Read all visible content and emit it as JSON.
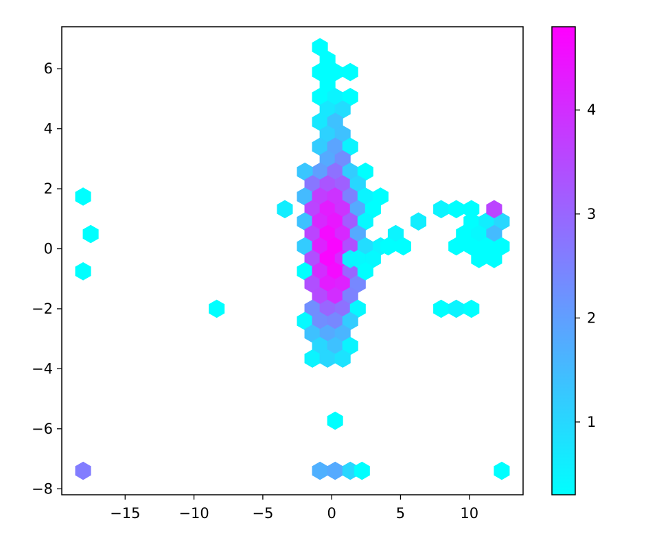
{
  "chart_data": {
    "type": "hexbin",
    "title": "",
    "xlabel": "",
    "ylabel": "",
    "xlim": [
      -19.6,
      13.9
    ],
    "ylim": [
      -8.2,
      7.4
    ],
    "x_ticks": [
      -15,
      -10,
      -5,
      0,
      5,
      10
    ],
    "x_tick_labels": [
      "−15",
      "−10",
      "−5",
      "0",
      "5",
      "10"
    ],
    "y_ticks": [
      -8,
      -6,
      -4,
      -2,
      0,
      2,
      4,
      6
    ],
    "y_tick_labels": [
      "−8",
      "−6",
      "−4",
      "−2",
      "0",
      "2",
      "4",
      "6"
    ],
    "grid": false,
    "colormap": "cool",
    "color_min": "#00ffff",
    "color_max": "#ff00ff",
    "colorbar": {
      "vmin": 0.3,
      "vmax": 4.8,
      "ticks": [
        1,
        2,
        3,
        4
      ],
      "tick_labels": [
        "1",
        "2",
        "3",
        "4"
      ]
    },
    "hex_x_spacing": 1.12,
    "hex_y_spacing": 0.415,
    "hexbins": [
      {
        "x": -0.85,
        "y": 6.72,
        "v": 0.3
      },
      {
        "x": -0.3,
        "y": 6.3,
        "v": 0.3
      },
      {
        "x": -0.85,
        "y": 5.89,
        "v": 0.3
      },
      {
        "x": 0.25,
        "y": 5.89,
        "v": 0.3
      },
      {
        "x": 1.35,
        "y": 5.89,
        "v": 0.3
      },
      {
        "x": -0.3,
        "y": 5.47,
        "v": 0.3
      },
      {
        "x": -0.85,
        "y": 5.06,
        "v": 0.3
      },
      {
        "x": 0.25,
        "y": 5.06,
        "v": 0.5
      },
      {
        "x": 1.35,
        "y": 5.06,
        "v": 0.3
      },
      {
        "x": -0.3,
        "y": 4.64,
        "v": 0.7
      },
      {
        "x": 0.8,
        "y": 4.64,
        "v": 0.9
      },
      {
        "x": -0.85,
        "y": 4.23,
        "v": 0.7
      },
      {
        "x": 0.25,
        "y": 4.23,
        "v": 1.4
      },
      {
        "x": -0.3,
        "y": 3.81,
        "v": 1.1
      },
      {
        "x": 0.8,
        "y": 3.81,
        "v": 1.4
      },
      {
        "x": -0.85,
        "y": 3.4,
        "v": 1.2
      },
      {
        "x": 0.25,
        "y": 3.4,
        "v": 1.9
      },
      {
        "x": 1.35,
        "y": 3.4,
        "v": 0.5
      },
      {
        "x": -0.3,
        "y": 2.98,
        "v": 1.8
      },
      {
        "x": 0.8,
        "y": 2.98,
        "v": 2.3
      },
      {
        "x": -0.85,
        "y": 2.57,
        "v": 2.0
      },
      {
        "x": 0.25,
        "y": 2.57,
        "v": 2.8
      },
      {
        "x": 1.35,
        "y": 2.57,
        "v": 1.2
      },
      {
        "x": -1.95,
        "y": 2.57,
        "v": 1.3
      },
      {
        "x": 2.45,
        "y": 2.57,
        "v": 0.3
      },
      {
        "x": -1.4,
        "y": 2.15,
        "v": 2.7
      },
      {
        "x": -0.3,
        "y": 2.15,
        "v": 3.3
      },
      {
        "x": 0.8,
        "y": 2.15,
        "v": 3.1
      },
      {
        "x": 1.9,
        "y": 2.15,
        "v": 1.0
      },
      {
        "x": -1.95,
        "y": 1.74,
        "v": 1.5
      },
      {
        "x": -0.85,
        "y": 1.74,
        "v": 3.7
      },
      {
        "x": 0.25,
        "y": 1.74,
        "v": 3.9
      },
      {
        "x": 1.35,
        "y": 1.74,
        "v": 2.5
      },
      {
        "x": 2.45,
        "y": 1.74,
        "v": 0.5
      },
      {
        "x": 3.55,
        "y": 1.74,
        "v": 0.3
      },
      {
        "x": -3.4,
        "y": 1.32,
        "v": 0.6
      },
      {
        "x": -1.4,
        "y": 1.32,
        "v": 3.6
      },
      {
        "x": -0.3,
        "y": 1.32,
        "v": 4.3
      },
      {
        "x": 0.8,
        "y": 1.32,
        "v": 3.9
      },
      {
        "x": 1.9,
        "y": 1.32,
        "v": 1.8
      },
      {
        "x": 3.0,
        "y": 1.32,
        "v": 0.3
      },
      {
        "x": -1.95,
        "y": 0.91,
        "v": 1.4
      },
      {
        "x": -0.85,
        "y": 0.91,
        "v": 4.1
      },
      {
        "x": 0.25,
        "y": 0.91,
        "v": 4.4
      },
      {
        "x": 1.35,
        "y": 0.91,
        "v": 3.2
      },
      {
        "x": 2.45,
        "y": 0.91,
        "v": 0.4
      },
      {
        "x": -1.4,
        "y": 0.49,
        "v": 3.6
      },
      {
        "x": -0.3,
        "y": 0.49,
        "v": 4.6
      },
      {
        "x": 0.8,
        "y": 0.49,
        "v": 4.1
      },
      {
        "x": 1.9,
        "y": 0.49,
        "v": 1.8
      },
      {
        "x": -1.95,
        "y": 0.08,
        "v": 1.2
      },
      {
        "x": -0.85,
        "y": 0.08,
        "v": 4.2
      },
      {
        "x": 0.25,
        "y": 0.08,
        "v": 4.7
      },
      {
        "x": 1.35,
        "y": 0.08,
        "v": 3.4
      },
      {
        "x": 2.45,
        "y": 0.08,
        "v": 0.9
      },
      {
        "x": 3.55,
        "y": 0.08,
        "v": 0.5
      },
      {
        "x": -1.4,
        "y": -0.34,
        "v": 3.4
      },
      {
        "x": -0.3,
        "y": -0.34,
        "v": 4.7
      },
      {
        "x": 0.8,
        "y": -0.34,
        "v": 4.1
      },
      {
        "x": 1.9,
        "y": -0.34,
        "v": 1.2
      },
      {
        "x": 3.0,
        "y": -0.34,
        "v": 0.4
      },
      {
        "x": -1.95,
        "y": -0.75,
        "v": 0.3
      },
      {
        "x": -0.85,
        "y": -0.75,
        "v": 4.0
      },
      {
        "x": 0.25,
        "y": -0.75,
        "v": 4.6
      },
      {
        "x": 1.35,
        "y": -0.75,
        "v": 3.0
      },
      {
        "x": -1.4,
        "y": -1.17,
        "v": 3.4
      },
      {
        "x": -0.3,
        "y": -1.17,
        "v": 4.3
      },
      {
        "x": 0.8,
        "y": -1.17,
        "v": 4.2
      },
      {
        "x": 1.9,
        "y": -1.17,
        "v": 2.4
      },
      {
        "x": -0.85,
        "y": -1.58,
        "v": 3.5
      },
      {
        "x": 0.25,
        "y": -1.58,
        "v": 4.0
      },
      {
        "x": 1.35,
        "y": -1.58,
        "v": 2.5
      },
      {
        "x": -1.4,
        "y": -2.0,
        "v": 2.3
      },
      {
        "x": -0.3,
        "y": -2.0,
        "v": 3.0
      },
      {
        "x": 0.8,
        "y": -2.0,
        "v": 2.8
      },
      {
        "x": 1.9,
        "y": -2.0,
        "v": 0.4
      },
      {
        "x": -1.95,
        "y": -2.41,
        "v": 0.4
      },
      {
        "x": -0.85,
        "y": -2.41,
        "v": 2.3
      },
      {
        "x": 0.25,
        "y": -2.41,
        "v": 2.4
      },
      {
        "x": 1.35,
        "y": -2.41,
        "v": 1.2
      },
      {
        "x": -1.4,
        "y": -2.83,
        "v": 1.4
      },
      {
        "x": -0.3,
        "y": -2.83,
        "v": 1.8
      },
      {
        "x": 0.8,
        "y": -2.83,
        "v": 1.6
      },
      {
        "x": -0.85,
        "y": -3.24,
        "v": 1.0
      },
      {
        "x": 0.25,
        "y": -3.24,
        "v": 1.4
      },
      {
        "x": 1.35,
        "y": -3.24,
        "v": 0.5
      },
      {
        "x": -1.4,
        "y": -3.66,
        "v": 0.5
      },
      {
        "x": -0.3,
        "y": -3.66,
        "v": 1.0
      },
      {
        "x": 0.8,
        "y": -3.66,
        "v": 0.8
      },
      {
        "x": 1.35,
        "y": -0.34,
        "v": 0.6
      },
      {
        "x": 1.9,
        "y": -0.34,
        "v": 0.4
      },
      {
        "x": 4.65,
        "y": 0.49,
        "v": 0.5
      },
      {
        "x": 4.1,
        "y": 0.08,
        "v": 0.3
      },
      {
        "x": 5.2,
        "y": 0.08,
        "v": 0.3
      },
      {
        "x": 2.45,
        "y": -0.75,
        "v": 0.3
      },
      {
        "x": 6.3,
        "y": 0.91,
        "v": 0.6
      },
      {
        "x": 7.95,
        "y": 1.32,
        "v": 0.5
      },
      {
        "x": 9.05,
        "y": 1.32,
        "v": 0.3
      },
      {
        "x": 10.15,
        "y": 1.32,
        "v": 0.3
      },
      {
        "x": 10.15,
        "y": 0.91,
        "v": 0.3
      },
      {
        "x": 11.25,
        "y": 0.91,
        "v": 0.6
      },
      {
        "x": 12.35,
        "y": 0.91,
        "v": 1.0
      },
      {
        "x": 11.8,
        "y": 1.32,
        "v": 3.6
      },
      {
        "x": 9.6,
        "y": 0.49,
        "v": 0.3
      },
      {
        "x": 10.7,
        "y": 0.49,
        "v": 0.4
      },
      {
        "x": 11.8,
        "y": 0.49,
        "v": 1.5
      },
      {
        "x": 9.05,
        "y": 0.08,
        "v": 0.3
      },
      {
        "x": 10.15,
        "y": 0.08,
        "v": 0.3
      },
      {
        "x": 11.25,
        "y": 0.08,
        "v": 0.3
      },
      {
        "x": 12.35,
        "y": 0.08,
        "v": 0.3
      },
      {
        "x": 10.7,
        "y": -0.34,
        "v": 0.3
      },
      {
        "x": 11.8,
        "y": -0.34,
        "v": 0.3
      },
      {
        "x": 7.95,
        "y": -2.0,
        "v": 0.3
      },
      {
        "x": 9.05,
        "y": -2.0,
        "v": 0.5
      },
      {
        "x": 10.15,
        "y": -2.0,
        "v": 0.3
      },
      {
        "x": -18.05,
        "y": 1.74,
        "v": 0.3
      },
      {
        "x": -17.5,
        "y": 0.49,
        "v": 0.3
      },
      {
        "x": -18.05,
        "y": -0.75,
        "v": 0.3
      },
      {
        "x": -8.35,
        "y": -2.0,
        "v": 0.3
      },
      {
        "x": 0.25,
        "y": -5.73,
        "v": 0.3
      },
      {
        "x": -18.05,
        "y": -7.4,
        "v": 2.6
      },
      {
        "x": -0.85,
        "y": -7.4,
        "v": 1.7
      },
      {
        "x": 0.25,
        "y": -7.4,
        "v": 1.8
      },
      {
        "x": 1.35,
        "y": -7.4,
        "v": 1.0
      },
      {
        "x": 2.2,
        "y": -7.4,
        "v": 0.3
      },
      {
        "x": 12.35,
        "y": -7.4,
        "v": 0.3
      }
    ]
  }
}
